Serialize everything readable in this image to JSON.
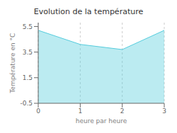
{
  "chart_data": {
    "type": "area",
    "title": "Evolution de la température",
    "xlabel": "heure par heure",
    "ylabel": "Température en °C",
    "x": [
      0,
      1,
      2,
      3
    ],
    "values": [
      5.2,
      4.1,
      3.7,
      5.2
    ],
    "color": "#55ccdd",
    "xlim": [
      0,
      3.0
    ],
    "ylim": [
      -0.5,
      5.8
    ],
    "xticks": [
      0,
      1,
      2,
      3
    ],
    "yticks": [
      -0.5,
      1.5,
      3.5,
      5.5
    ],
    "grid": "x"
  }
}
